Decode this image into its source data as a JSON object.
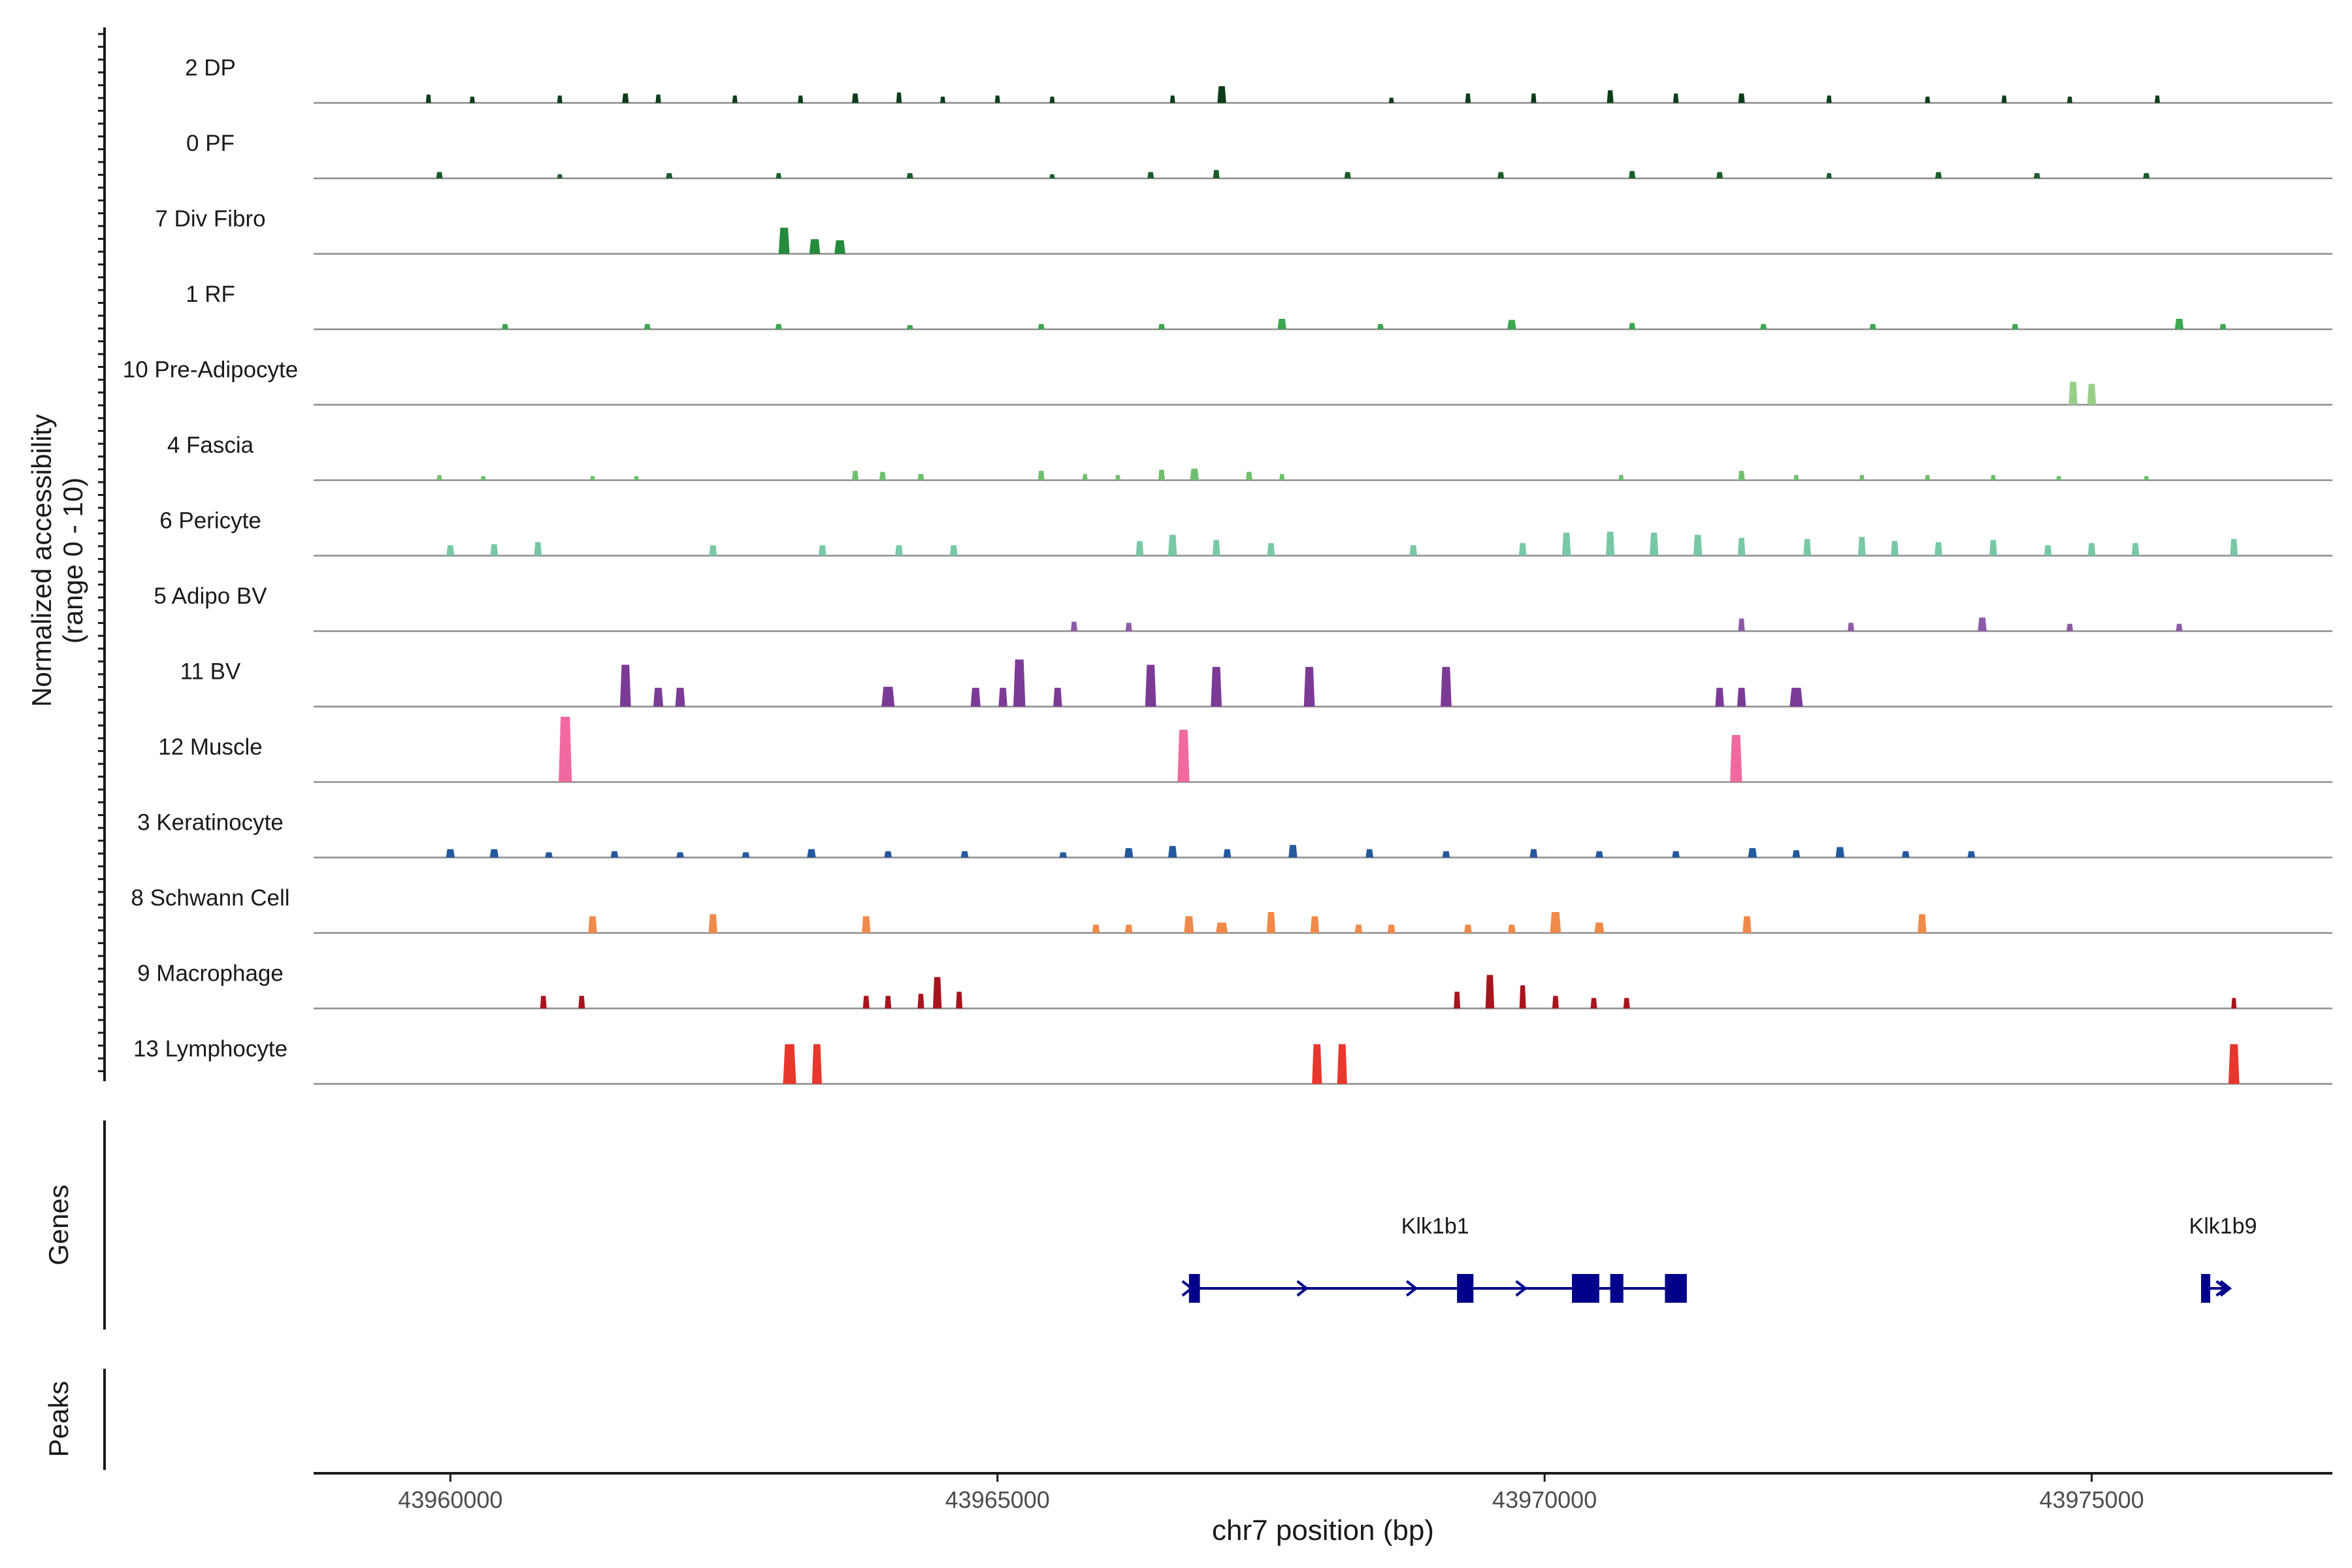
{
  "chart_data": {
    "type": "coverage-track",
    "xlabel": "chr7 position (bp)",
    "x_range": [
      43958750,
      43977200
    ],
    "x_ticks": [
      43960000,
      43965000,
      43970000,
      43975000
    ],
    "x_tick_labels": [
      "43960000",
      "43965000",
      "43970000",
      "43975000"
    ],
    "y_label_line1": "Normalized accessibility",
    "y_label_line2": "(range 0 - 10)",
    "y_range": [
      0,
      10
    ],
    "genes_panel_label": "Genes",
    "peaks_panel_label": "Peaks",
    "tracks": [
      {
        "name": "2 DP",
        "color": "#0b3d19",
        "peaks": [
          [
            43959800,
            40,
            0.8
          ],
          [
            43960200,
            30,
            0.6
          ],
          [
            43961000,
            40,
            0.7
          ],
          [
            43961600,
            60,
            0.9
          ],
          [
            43961900,
            50,
            0.8
          ],
          [
            43962600,
            40,
            0.7
          ],
          [
            43963200,
            40,
            0.7
          ],
          [
            43963700,
            60,
            0.9
          ],
          [
            43964100,
            50,
            1.0
          ],
          [
            43964500,
            30,
            0.6
          ],
          [
            43965000,
            40,
            0.7
          ],
          [
            43965500,
            30,
            0.6
          ],
          [
            43966600,
            40,
            0.7
          ],
          [
            43967050,
            80,
            1.6
          ],
          [
            43968600,
            30,
            0.5
          ],
          [
            43969300,
            50,
            0.9
          ],
          [
            43969900,
            50,
            0.9
          ],
          [
            43970600,
            60,
            1.2
          ],
          [
            43971200,
            50,
            0.9
          ],
          [
            43971800,
            60,
            0.9
          ],
          [
            43972600,
            40,
            0.7
          ],
          [
            43973500,
            30,
            0.6
          ],
          [
            43974200,
            40,
            0.7
          ],
          [
            43974800,
            30,
            0.6
          ],
          [
            43975600,
            40,
            0.7
          ]
        ]
      },
      {
        "name": "0 PF",
        "color": "#1a5e2a",
        "peaks": [
          [
            43959900,
            60,
            0.6
          ],
          [
            43961000,
            50,
            0.4
          ],
          [
            43962000,
            60,
            0.5
          ],
          [
            43963000,
            50,
            0.5
          ],
          [
            43964200,
            60,
            0.5
          ],
          [
            43965500,
            50,
            0.4
          ],
          [
            43966400,
            60,
            0.6
          ],
          [
            43967000,
            60,
            0.8
          ],
          [
            43968200,
            60,
            0.6
          ],
          [
            43969600,
            60,
            0.6
          ],
          [
            43970800,
            60,
            0.7
          ],
          [
            43971600,
            60,
            0.6
          ],
          [
            43972600,
            50,
            0.5
          ],
          [
            43973600,
            60,
            0.6
          ],
          [
            43974500,
            60,
            0.5
          ],
          [
            43975500,
            60,
            0.5
          ]
        ]
      },
      {
        "name": "7 Div Fibro",
        "color": "#258a3c",
        "peaks": [
          [
            43963050,
            100,
            2.5
          ],
          [
            43963330,
            100,
            1.4
          ],
          [
            43963560,
            100,
            1.3
          ]
        ]
      },
      {
        "name": "1 RF",
        "color": "#3ca650",
        "peaks": [
          [
            43960500,
            60,
            0.5
          ],
          [
            43961800,
            60,
            0.5
          ],
          [
            43963000,
            60,
            0.5
          ],
          [
            43964200,
            60,
            0.4
          ],
          [
            43965400,
            60,
            0.5
          ],
          [
            43966500,
            60,
            0.5
          ],
          [
            43967600,
            80,
            1.0
          ],
          [
            43968500,
            60,
            0.5
          ],
          [
            43969700,
            80,
            0.9
          ],
          [
            43970800,
            60,
            0.6
          ],
          [
            43972000,
            60,
            0.5
          ],
          [
            43973000,
            60,
            0.5
          ],
          [
            43974300,
            60,
            0.5
          ],
          [
            43975800,
            80,
            1.0
          ],
          [
            43976200,
            60,
            0.5
          ]
        ]
      },
      {
        "name": "10 Pre-Adipocyte",
        "color": "#98d08a",
        "peaks": [
          [
            43974830,
            80,
            2.2
          ],
          [
            43975000,
            80,
            2.0
          ]
        ]
      },
      {
        "name": "4 Fascia",
        "color": "#6fbf6f",
        "peaks": [
          [
            43959900,
            40,
            0.5
          ],
          [
            43960300,
            40,
            0.4
          ],
          [
            43961300,
            40,
            0.4
          ],
          [
            43961700,
            40,
            0.4
          ],
          [
            43963700,
            60,
            0.9
          ],
          [
            43963950,
            60,
            0.8
          ],
          [
            43964300,
            60,
            0.6
          ],
          [
            43965400,
            60,
            0.9
          ],
          [
            43965800,
            40,
            0.6
          ],
          [
            43966100,
            40,
            0.5
          ],
          [
            43966500,
            60,
            1.0
          ],
          [
            43966800,
            80,
            1.1
          ],
          [
            43967300,
            60,
            0.8
          ],
          [
            43967600,
            40,
            0.6
          ],
          [
            43970700,
            40,
            0.5
          ],
          [
            43971800,
            60,
            0.9
          ],
          [
            43972300,
            40,
            0.5
          ],
          [
            43972900,
            40,
            0.5
          ],
          [
            43973500,
            40,
            0.5
          ],
          [
            43974100,
            40,
            0.5
          ],
          [
            43974700,
            40,
            0.4
          ],
          [
            43975500,
            40,
            0.4
          ]
        ]
      },
      {
        "name": "6 Pericyte",
        "color": "#78c8a6",
        "peaks": [
          [
            43960000,
            70,
            1.0
          ],
          [
            43960400,
            70,
            1.1
          ],
          [
            43960800,
            70,
            1.3
          ],
          [
            43962400,
            70,
            1.0
          ],
          [
            43963400,
            70,
            1.0
          ],
          [
            43964100,
            70,
            1.0
          ],
          [
            43964600,
            70,
            1.0
          ],
          [
            43966300,
            70,
            1.4
          ],
          [
            43966600,
            80,
            2.0
          ],
          [
            43967000,
            70,
            1.5
          ],
          [
            43967500,
            70,
            1.2
          ],
          [
            43968800,
            70,
            1.0
          ],
          [
            43969800,
            70,
            1.2
          ],
          [
            43970200,
            80,
            2.2
          ],
          [
            43970600,
            80,
            2.3
          ],
          [
            43971000,
            80,
            2.2
          ],
          [
            43971400,
            80,
            2.0
          ],
          [
            43971800,
            70,
            1.7
          ],
          [
            43972400,
            70,
            1.6
          ],
          [
            43972900,
            70,
            1.8
          ],
          [
            43973200,
            70,
            1.4
          ],
          [
            43973600,
            70,
            1.3
          ],
          [
            43974100,
            70,
            1.5
          ],
          [
            43974600,
            70,
            1.0
          ],
          [
            43975000,
            70,
            1.2
          ],
          [
            43975400,
            70,
            1.2
          ],
          [
            43976300,
            70,
            1.6
          ]
        ]
      },
      {
        "name": "5 Adipo BV",
        "color": "#8e5aa8",
        "peaks": [
          [
            43965700,
            60,
            0.9
          ],
          [
            43966200,
            60,
            0.8
          ],
          [
            43971800,
            60,
            1.2
          ],
          [
            43972800,
            60,
            0.8
          ],
          [
            43974000,
            80,
            1.3
          ],
          [
            43974800,
            60,
            0.7
          ],
          [
            43975800,
            60,
            0.7
          ]
        ]
      },
      {
        "name": "11 BV",
        "color": "#7c3a97",
        "peaks": [
          [
            43961600,
            100,
            4.0
          ],
          [
            43961900,
            90,
            1.8
          ],
          [
            43962100,
            90,
            1.8
          ],
          [
            43964000,
            120,
            1.9
          ],
          [
            43964800,
            90,
            1.8
          ],
          [
            43965050,
            80,
            1.8
          ],
          [
            43965200,
            110,
            4.5
          ],
          [
            43965550,
            80,
            1.8
          ],
          [
            43966400,
            100,
            4.0
          ],
          [
            43967000,
            100,
            3.8
          ],
          [
            43967850,
            100,
            3.8
          ],
          [
            43969100,
            100,
            3.8
          ],
          [
            43971600,
            80,
            1.8
          ],
          [
            43971800,
            80,
            1.8
          ],
          [
            43972300,
            120,
            1.8
          ]
        ]
      },
      {
        "name": "12 Muscle",
        "color": "#f06aa0",
        "peaks": [
          [
            43961050,
            120,
            7.0
          ],
          [
            43966700,
            110,
            5.0
          ],
          [
            43971750,
            110,
            4.5
          ]
        ]
      },
      {
        "name": "3 Keratinocyte",
        "color": "#23599e",
        "peaks": [
          [
            43960000,
            80,
            0.8
          ],
          [
            43960400,
            80,
            0.8
          ],
          [
            43960900,
            70,
            0.5
          ],
          [
            43961500,
            70,
            0.6
          ],
          [
            43962100,
            70,
            0.5
          ],
          [
            43962700,
            70,
            0.5
          ],
          [
            43963300,
            80,
            0.8
          ],
          [
            43964000,
            70,
            0.6
          ],
          [
            43964700,
            70,
            0.6
          ],
          [
            43965600,
            70,
            0.5
          ],
          [
            43966200,
            80,
            0.9
          ],
          [
            43966600,
            80,
            1.1
          ],
          [
            43967100,
            70,
            0.8
          ],
          [
            43967700,
            80,
            1.2
          ],
          [
            43968400,
            70,
            0.8
          ],
          [
            43969100,
            70,
            0.6
          ],
          [
            43969900,
            70,
            0.8
          ],
          [
            43970500,
            70,
            0.6
          ],
          [
            43971200,
            70,
            0.6
          ],
          [
            43971900,
            80,
            0.9
          ],
          [
            43972300,
            70,
            0.7
          ],
          [
            43972700,
            80,
            1.0
          ],
          [
            43973300,
            70,
            0.6
          ],
          [
            43973900,
            70,
            0.6
          ]
        ]
      },
      {
        "name": "8 Schwann Cell",
        "color": "#f08a4a",
        "peaks": [
          [
            43961300,
            80,
            1.6
          ],
          [
            43962400,
            80,
            1.8
          ],
          [
            43963800,
            80,
            1.6
          ],
          [
            43965900,
            70,
            0.8
          ],
          [
            43966200,
            70,
            0.8
          ],
          [
            43966750,
            90,
            1.6
          ],
          [
            43967050,
            110,
            1.0
          ],
          [
            43967500,
            80,
            2.0
          ],
          [
            43967900,
            80,
            1.6
          ],
          [
            43968300,
            70,
            0.8
          ],
          [
            43968600,
            70,
            0.8
          ],
          [
            43969300,
            70,
            0.8
          ],
          [
            43969700,
            70,
            0.8
          ],
          [
            43970100,
            100,
            2.0
          ],
          [
            43970500,
            90,
            1.0
          ],
          [
            43971850,
            80,
            1.6
          ],
          [
            43973450,
            80,
            1.8
          ]
        ]
      },
      {
        "name": "9 Macrophage",
        "color": "#a8141d",
        "peaks": [
          [
            43960850,
            60,
            1.2
          ],
          [
            43961200,
            60,
            1.2
          ],
          [
            43963800,
            60,
            1.2
          ],
          [
            43964000,
            60,
            1.2
          ],
          [
            43964300,
            60,
            1.4
          ],
          [
            43964450,
            80,
            3.0
          ],
          [
            43964650,
            60,
            1.6
          ],
          [
            43969200,
            60,
            1.6
          ],
          [
            43969500,
            80,
            3.2
          ],
          [
            43969800,
            60,
            2.2
          ],
          [
            43970100,
            60,
            1.2
          ],
          [
            43970450,
            60,
            1.0
          ],
          [
            43970750,
            60,
            1.0
          ],
          [
            43976300,
            30,
            1.0
          ]
        ]
      },
      {
        "name": "13 Lymphocyte",
        "color": "#e8372c",
        "peaks": [
          [
            43963100,
            120,
            3.8
          ],
          [
            43963350,
            90,
            3.8
          ],
          [
            43967920,
            90,
            3.8
          ],
          [
            43968150,
            90,
            3.8
          ],
          [
            43976300,
            100,
            3.8
          ]
        ]
      }
    ],
    "genes": [
      {
        "name": "Klk1b1",
        "start": 43966750,
        "end": 43971300,
        "label_x": 43969000,
        "strand": "+",
        "exons": [
          [
            43966750,
            43966850
          ],
          [
            43969200,
            43969350
          ],
          [
            43970250,
            43970500
          ],
          [
            43970600,
            43970720
          ],
          [
            43971100,
            43971300
          ]
        ],
        "arrows": [
          43966750,
          43967800,
          43968800,
          43969800
        ]
      },
      {
        "name": "Klk1b9",
        "start": 43976000,
        "end": 43976250,
        "label_x": 43976200,
        "strand": "+",
        "exons": [
          [
            43976000,
            43976080
          ]
        ],
        "arrows": [
          43976200
        ]
      }
    ]
  }
}
